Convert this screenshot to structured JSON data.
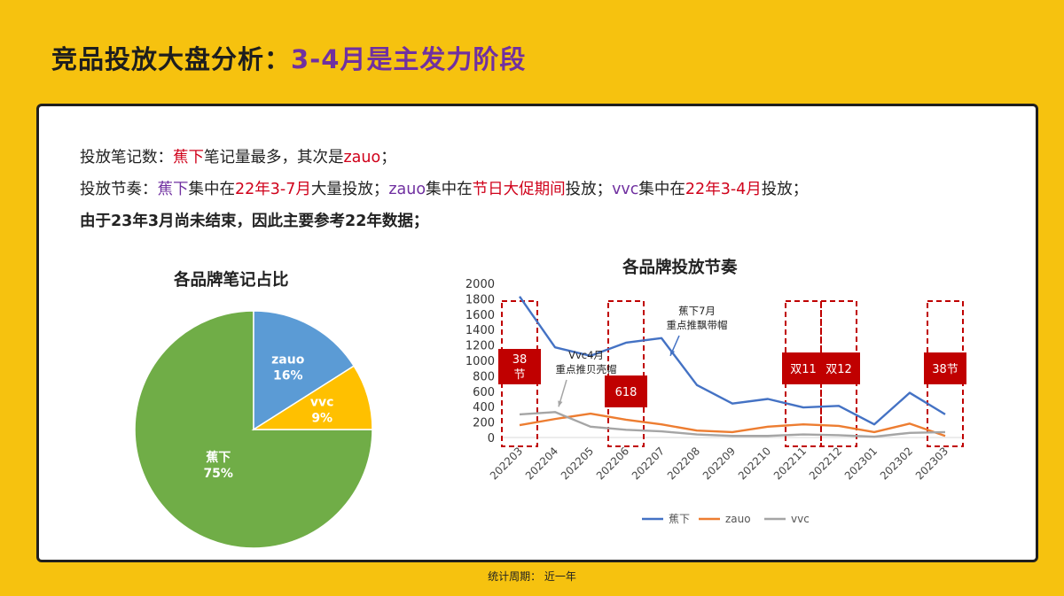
{
  "header": {
    "title_prefix": "竞品投放大盘分析：",
    "title_highlight": "3-4月是主发力阶段"
  },
  "summary": {
    "line1": [
      {
        "text": "投放笔记数：",
        "style": "normal"
      },
      {
        "text": "蕉下",
        "style": "red"
      },
      {
        "text": "笔记量最多，其次是",
        "style": "normal"
      },
      {
        "text": "zauo",
        "style": "red"
      },
      {
        "text": "；",
        "style": "normal"
      }
    ],
    "line2": [
      {
        "text": "投放节奏：",
        "style": "normal"
      },
      {
        "text": "蕉下",
        "style": "purple"
      },
      {
        "text": "集中在",
        "style": "normal"
      },
      {
        "text": "22年3-7月",
        "style": "red"
      },
      {
        "text": "大量投放；",
        "style": "normal"
      },
      {
        "text": "zauo",
        "style": "purple"
      },
      {
        "text": "集中在",
        "style": "normal"
      },
      {
        "text": "节日大促期间",
        "style": "red"
      },
      {
        "text": "投放；",
        "style": "normal"
      },
      {
        "text": "vvc",
        "style": "purple"
      },
      {
        "text": "集中在",
        "style": "normal"
      },
      {
        "text": "22年3-4月",
        "style": "red"
      },
      {
        "text": "投放；",
        "style": "normal"
      }
    ],
    "line3": "由于23年3月尚未结束，因此主要参考22年数据；"
  },
  "footer": {
    "text": "统计周期：  近一年"
  },
  "colors": {
    "background": "#f6c20f",
    "title_highlight": "#7030a0",
    "jiaoxia": "#4472c4",
    "zauo": "#ed7d31",
    "vvc": "#a5a5a5",
    "pie_jiaoxia": "#70ad47",
    "pie_zauo": "#5b9bd5",
    "pie_vvc": "#ffc000",
    "event_box": "#c00000"
  },
  "chart_data": [
    {
      "type": "pie",
      "title": "各品牌笔记占比",
      "slices": [
        {
          "label": "蕉下",
          "value": 75,
          "value_label": "75%",
          "color": "#70ad47"
        },
        {
          "label": "zauo",
          "value": 16,
          "value_label": "16%",
          "color": "#5b9bd5"
        },
        {
          "label": "vvc",
          "value": 9,
          "value_label": "9%",
          "color": "#ffc000"
        }
      ]
    },
    {
      "type": "line",
      "title": "各品牌投放节奏",
      "categories": [
        "202203",
        "202204",
        "202205",
        "202206",
        "202207",
        "202208",
        "202209",
        "202210",
        "202211",
        "202212",
        "202301",
        "202302",
        "202303"
      ],
      "ylim": [
        0,
        2000
      ],
      "yticks": [
        0,
        200,
        400,
        600,
        800,
        1000,
        1200,
        1400,
        1600,
        1800,
        2000
      ],
      "grid": false,
      "legend": "bottom",
      "series": [
        {
          "name": "蕉下",
          "color": "#4472c4",
          "values": [
            1830,
            1170,
            1060,
            1230,
            1290,
            680,
            440,
            500,
            390,
            410,
            170,
            580,
            300
          ]
        },
        {
          "name": "zauo",
          "color": "#ed7d31",
          "values": [
            160,
            240,
            310,
            230,
            170,
            90,
            70,
            140,
            170,
            150,
            70,
            180,
            20
          ]
        },
        {
          "name": "vvc",
          "color": "#a5a5a5",
          "values": [
            300,
            330,
            140,
            100,
            80,
            40,
            20,
            20,
            40,
            30,
            10,
            60,
            70
          ]
        }
      ],
      "events": [
        {
          "index": 0,
          "label_lines": [
            "38",
            "节"
          ]
        },
        {
          "index": 3,
          "label_lines": [
            "618"
          ]
        },
        {
          "index": 8,
          "label_lines": [
            "双11"
          ]
        },
        {
          "index": 9,
          "label_lines": [
            "双12"
          ]
        },
        {
          "index": 12,
          "label_lines": [
            "38节"
          ]
        }
      ],
      "annotations": [
        {
          "lines": [
            "蕉下7月",
            "重点推飘带帽"
          ],
          "target_series": 0,
          "target_index": 4
        },
        {
          "lines": [
            "Vvc4月",
            "重点推贝壳帽"
          ],
          "target_series": 2,
          "target_index": 1
        }
      ]
    }
  ]
}
